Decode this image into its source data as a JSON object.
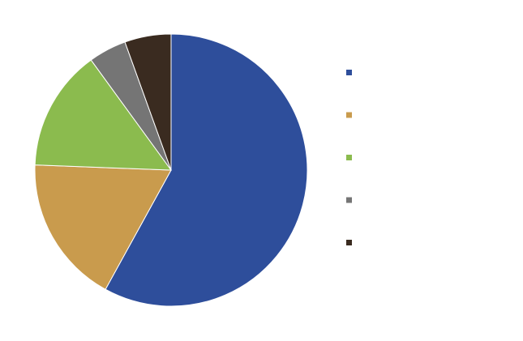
{
  "chart_data": {
    "type": "pie",
    "title": "",
    "legend_position": "right",
    "start_angle": "12 o'clock",
    "direction": "clockwise",
    "slices": [
      {
        "label": "",
        "value": 58,
        "color": "#2E4E9B"
      },
      {
        "label": "",
        "value": 17.6,
        "color": "#C99B4D"
      },
      {
        "label": "",
        "value": 14.4,
        "color": "#8BBB4E"
      },
      {
        "label": "",
        "value": 4.5,
        "color": "#757575"
      },
      {
        "label": "",
        "value": 5.5,
        "color": "#3A2B20"
      }
    ]
  }
}
